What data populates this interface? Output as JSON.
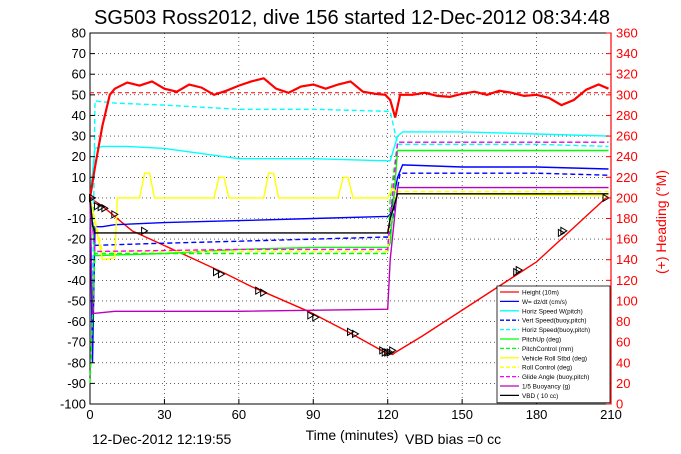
{
  "figure": {
    "title": "SG503 Ross2012, dive 156 started 12-Dec-2012 08:34:48",
    "xlabel": "Time (minutes)",
    "ylabel_right": "(+) Heading (°M)",
    "footer_left": "12-Dec-2012 12:19:55",
    "footer_right": "VBD bias =0 cc"
  },
  "chart_data": {
    "type": "line",
    "xlim": [
      0,
      210
    ],
    "ylim": [
      -100,
      80
    ],
    "ylim_right": [
      0,
      360
    ],
    "xticks": [
      0,
      30,
      60,
      90,
      120,
      150,
      180,
      210
    ],
    "yticks": [
      -100,
      -90,
      -80,
      -70,
      -60,
      -50,
      -40,
      -30,
      -20,
      -10,
      0,
      10,
      20,
      30,
      40,
      50,
      60,
      70,
      80
    ],
    "yticks_right": [
      0,
      20,
      40,
      60,
      80,
      100,
      120,
      140,
      160,
      180,
      200,
      220,
      240,
      260,
      280,
      300,
      320,
      340,
      360
    ],
    "grid": true,
    "legend_position": "bottom-right",
    "series": [
      {
        "name": "Height (10m)",
        "color": "#ff0000",
        "style": "solid",
        "x": [
          0,
          5,
          17,
          37,
          55,
          65,
          88,
          104,
          119,
          122,
          123,
          134,
          180,
          208
        ],
        "y": [
          0,
          -4,
          -16,
          -27,
          -37,
          -43,
          -55,
          -65,
          -75,
          -76,
          -75,
          -67,
          -31,
          0
        ]
      },
      {
        "name": "W= dz/dt (cm/s)",
        "color": "#0000ff",
        "style": "solid",
        "x": [
          0,
          1,
          2,
          5,
          10,
          30,
          60,
          90,
          120,
          121,
          124,
          126,
          150,
          180,
          209
        ],
        "y": [
          0,
          -80,
          -14,
          -14,
          -13,
          -12,
          -11,
          -10,
          -9,
          -8,
          10,
          16,
          15,
          15,
          14
        ]
      },
      {
        "name": "Horiz Speed W(pitch)",
        "color": "#00ffff",
        "style": "solid",
        "x": [
          0,
          2,
          5,
          15,
          30,
          60,
          90,
          120,
          121,
          124,
          126,
          150,
          180,
          209
        ],
        "y": [
          0,
          24,
          25,
          25,
          24,
          19,
          19,
          18,
          18,
          30,
          32,
          32,
          31,
          30
        ]
      },
      {
        "name": "Vert Speed(buoy,pitch)",
        "color": "#0000ff",
        "style": "dashed",
        "x": [
          0,
          2,
          30,
          60,
          90,
          120,
          121,
          125,
          150,
          180,
          209
        ],
        "y": [
          0,
          -23,
          -22,
          -21,
          -20,
          -19,
          -17,
          12,
          12,
          12,
          11
        ]
      },
      {
        "name": "Horiz Speed(buoy,pitch)",
        "color": "#00ffff",
        "style": "dashed",
        "x": [
          0,
          1,
          2,
          10,
          30,
          60,
          90,
          120,
          121,
          124,
          150,
          180,
          209
        ],
        "y": [
          0,
          -50,
          47,
          46,
          45,
          43,
          43,
          42,
          42,
          26,
          26,
          26,
          25
        ]
      },
      {
        "name": "PitchUp (deg)",
        "color": "#00ff00",
        "style": "solid",
        "x": [
          0,
          2,
          30,
          60,
          90,
          120,
          121,
          124,
          150,
          180,
          209
        ],
        "y": [
          0,
          -28,
          -27,
          -25,
          -24,
          -24,
          -22,
          23,
          23,
          23,
          23
        ]
      },
      {
        "name": "PitchControl (mm)",
        "color": "#00ff00",
        "style": "dashed",
        "x": [
          0,
          2,
          60,
          120,
          121,
          124,
          209
        ],
        "y": [
          -90,
          -27,
          -27,
          -27,
          0,
          27,
          27
        ]
      },
      {
        "name": "Vehicle Roll Stbd (deg)",
        "color": "#ffff00",
        "style": "solid",
        "x": [
          0,
          5,
          10,
          11,
          12,
          20,
          22,
          24,
          26,
          50,
          52,
          54,
          56,
          70,
          72,
          74,
          76,
          100,
          102,
          104,
          106,
          120,
          122,
          124,
          209
        ],
        "y": [
          0,
          -30,
          -29,
          0,
          0,
          0,
          12,
          12,
          0,
          0,
          10,
          10,
          0,
          0,
          12,
          12,
          0,
          0,
          10,
          10,
          0,
          0,
          5,
          2,
          1
        ]
      },
      {
        "name": "Roll Control (deg)",
        "color": "#ffff00",
        "style": "dashed",
        "x": [
          0,
          5,
          120,
          121,
          124,
          209
        ],
        "y": [
          0,
          -26,
          -26,
          -10,
          3,
          3
        ]
      },
      {
        "name": "Glide Angle (buoy,pitch)",
        "color": "#ff00ff",
        "style": "dashed",
        "x": [
          0,
          2,
          60,
          120,
          121,
          124,
          209
        ],
        "y": [
          0,
          -26,
          -25,
          -25,
          -10,
          27,
          27
        ]
      },
      {
        "name": "1/5 Buoyancy (g)",
        "color": "#bb00bb",
        "style": "solid",
        "x": [
          0,
          1,
          2,
          10,
          60,
          120,
          121,
          124,
          150,
          180,
          209
        ],
        "y": [
          0,
          -56,
          -56,
          -55,
          -55,
          -54,
          -30,
          5,
          5,
          5,
          5
        ]
      },
      {
        "name": "VBD ( 10 cc)",
        "color": "#000000",
        "style": "solid",
        "x": [
          0,
          1,
          2,
          60,
          120,
          121,
          124,
          209
        ],
        "y": [
          0,
          -13,
          -17,
          -17,
          -17,
          -10,
          2,
          2
        ]
      }
    ],
    "heading": {
      "name": "(+) Heading",
      "color": "#ff0000",
      "axis": "right",
      "reference": 302,
      "x": [
        0,
        2,
        5,
        8,
        10,
        15,
        20,
        25,
        30,
        35,
        40,
        45,
        50,
        55,
        60,
        65,
        70,
        75,
        80,
        85,
        90,
        95,
        100,
        105,
        110,
        115,
        119,
        121,
        123,
        125,
        130,
        135,
        140,
        145,
        150,
        155,
        160,
        165,
        170,
        175,
        180,
        185,
        190,
        195,
        200,
        205,
        209
      ],
      "y": [
        200,
        230,
        270,
        300,
        306,
        312,
        309,
        313,
        306,
        303,
        310,
        307,
        300,
        304,
        309,
        313,
        316,
        306,
        302,
        308,
        310,
        306,
        310,
        313,
        303,
        301,
        300,
        295,
        278,
        300,
        300,
        302,
        299,
        298,
        301,
        303,
        300,
        304,
        302,
        299,
        300,
        297,
        290,
        295,
        305,
        310,
        306
      ]
    },
    "markers": {
      "style": "triangle",
      "color": "#000000",
      "x": [
        1,
        3,
        4.5,
        6,
        10,
        22,
        51,
        53,
        68,
        70,
        89,
        91,
        105,
        107,
        118,
        119,
        120,
        121,
        122,
        172,
        173,
        190,
        191,
        208
      ],
      "y": [
        0,
        -4,
        -4.5,
        -5,
        -8,
        -16,
        -36,
        -37,
        -45,
        -46,
        -57,
        -58,
        -65,
        -66,
        -74,
        -75,
        -75,
        -75,
        -74,
        -36,
        -35,
        -17,
        -16,
        0
      ]
    }
  }
}
